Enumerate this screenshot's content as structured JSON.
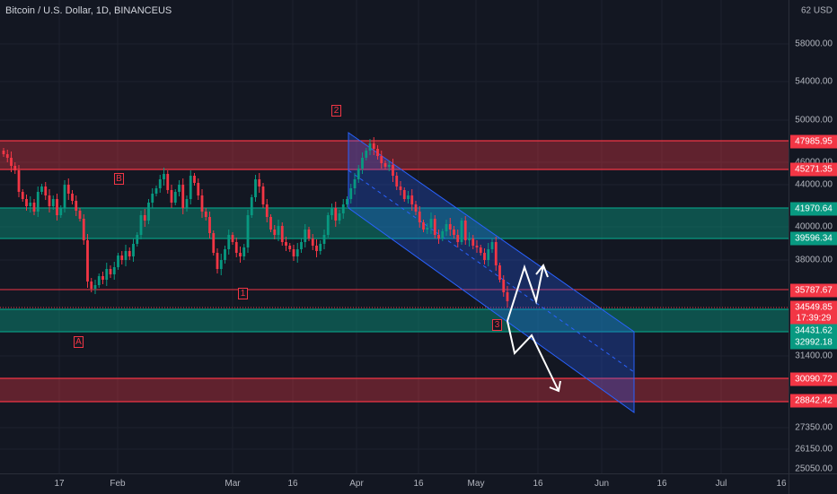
{
  "header": {
    "symbol_title": "Bitcoin / U.S. Dollar, 1D, BINANCEUS"
  },
  "price_axis": {
    "ticks": [
      "62 USD",
      "58000.00",
      "54000.00",
      "50000.00",
      "46000.00",
      "44000.00",
      "40000.00",
      "38000.00",
      "31400.00",
      "27350.00",
      "26150.00",
      "25050.00"
    ],
    "price_tags": [
      {
        "text": "47985.95",
        "color": "#f23645"
      },
      {
        "text": "45271.35",
        "color": "#f23645"
      },
      {
        "text": "41970.64",
        "color": "#089981"
      },
      {
        "text": "39596.34",
        "color": "#089981"
      },
      {
        "text": "35787.67",
        "color": "#f23645"
      },
      {
        "text": "34549.85",
        "color": "#f23645"
      },
      {
        "text": "17:39:29",
        "color": "#f23645"
      },
      {
        "text": "34431.62",
        "color": "#089981"
      },
      {
        "text": "32992.18",
        "color": "#089981"
      },
      {
        "text": "30090.72",
        "color": "#f23645"
      },
      {
        "text": "28842.42",
        "color": "#f23645"
      }
    ]
  },
  "time_axis": {
    "labels": [
      "17",
      "Feb",
      "Mar",
      "16",
      "Apr",
      "16",
      "May",
      "16",
      "Jun",
      "16",
      "Jul",
      "16"
    ]
  },
  "wave_labels": [
    "A",
    "B",
    "1",
    "2",
    "3"
  ],
  "zones": [
    {
      "type": "resistance",
      "upper": 47985.95,
      "lower": 45271.35
    },
    {
      "type": "support",
      "upper": 41970.64,
      "lower": 39596.34
    },
    {
      "type": "support",
      "upper": 34431.62,
      "lower": 32992.18
    },
    {
      "type": "resistance",
      "upper": 30090.72,
      "lower": 28842.42
    }
  ],
  "last_price": 34549.85,
  "colors": {
    "background": "#131722",
    "bull": "#089981",
    "bear": "#f23645",
    "resistance_fill": "rgba(242,54,69,0.35)",
    "support_fill": "rgba(8,153,129,0.45)",
    "channel": "#2962ff"
  }
}
